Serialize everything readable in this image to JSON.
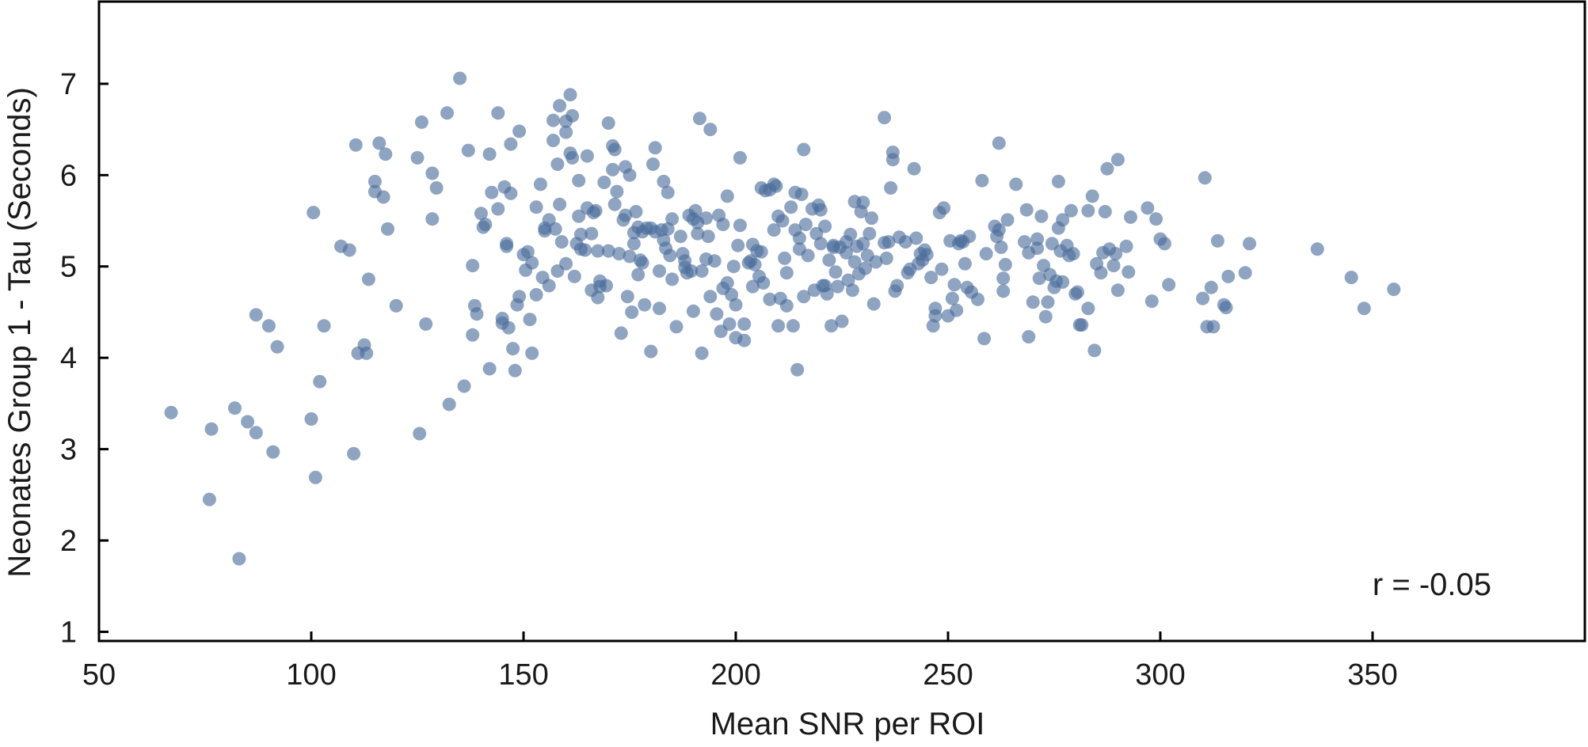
{
  "chart_data": {
    "type": "scatter",
    "xlabel": "Mean SNR per ROI",
    "ylabel": "Neonates  Group 1 - Tau (Seconds)",
    "xlim": [
      50,
      400
    ],
    "ylim": [
      0.9,
      7.9
    ],
    "xticks": [
      50,
      100,
      150,
      200,
      250,
      300,
      350
    ],
    "yticks": [
      1,
      2,
      3,
      4,
      5,
      6,
      7
    ],
    "grid": false,
    "annotation": "r = -0.05",
    "point_color": "#4a6c9b",
    "points": [
      [
        67,
        3.4
      ],
      [
        76,
        2.45
      ],
      [
        76.5,
        3.22
      ],
      [
        82,
        3.45
      ],
      [
        83,
        1.8
      ],
      [
        85,
        3.3
      ],
      [
        87,
        3.18
      ],
      [
        87,
        4.47
      ],
      [
        90,
        4.35
      ],
      [
        91,
        2.97
      ],
      [
        92,
        4.12
      ],
      [
        100,
        3.33
      ],
      [
        100.5,
        5.59
      ],
      [
        101,
        2.69
      ],
      [
        102,
        3.74
      ],
      [
        103,
        4.35
      ],
      [
        107,
        5.22
      ],
      [
        109,
        5.18
      ],
      [
        110,
        2.95
      ],
      [
        110.5,
        6.33
      ],
      [
        111,
        4.05
      ],
      [
        112.5,
        4.14
      ],
      [
        113,
        4.05
      ],
      [
        113.5,
        4.86
      ],
      [
        115,
        5.82
      ],
      [
        115,
        5.93
      ],
      [
        116,
        6.35
      ],
      [
        117,
        5.76
      ],
      [
        117.5,
        6.23
      ],
      [
        118,
        5.41
      ],
      [
        120,
        4.57
      ],
      [
        125,
        6.19
      ],
      [
        125.5,
        3.17
      ],
      [
        126,
        6.58
      ],
      [
        127,
        4.37
      ],
      [
        128.5,
        6.02
      ],
      [
        128.5,
        5.52
      ],
      [
        129.5,
        5.86
      ],
      [
        132,
        6.68
      ],
      [
        132.5,
        3.49
      ],
      [
        135,
        7.06
      ],
      [
        136,
        3.69
      ],
      [
        137,
        6.27
      ],
      [
        138,
        5.01
      ],
      [
        138,
        4.25
      ],
      [
        138.5,
        4.57
      ],
      [
        139,
        4.48
      ],
      [
        140,
        5.58
      ],
      [
        140.5,
        5.43
      ],
      [
        141,
        5.46
      ],
      [
        142,
        6.23
      ],
      [
        142,
        3.88
      ],
      [
        142.5,
        5.81
      ],
      [
        144,
        5.63
      ],
      [
        144,
        6.68
      ],
      [
        145,
        4.43
      ],
      [
        145,
        4.38
      ],
      [
        145.5,
        5.87
      ],
      [
        146,
        5.25
      ],
      [
        146,
        5.22
      ],
      [
        146.5,
        4.33
      ],
      [
        147,
        5.8
      ],
      [
        147,
        6.34
      ],
      [
        147.5,
        4.1
      ],
      [
        148,
        3.86
      ],
      [
        148.5,
        4.58
      ],
      [
        149,
        6.48
      ],
      [
        149,
        4.67
      ],
      [
        150,
        5.13
      ],
      [
        150.5,
        4.96
      ],
      [
        151,
        5.16
      ],
      [
        151.5,
        4.42
      ],
      [
        152,
        5.04
      ],
      [
        152,
        4.05
      ],
      [
        153,
        5.65
      ],
      [
        153,
        4.69
      ],
      [
        154,
        5.9
      ],
      [
        154.5,
        4.88
      ],
      [
        155,
        5.42
      ],
      [
        155,
        5.39
      ],
      [
        156,
        5.51
      ],
      [
        156,
        4.79
      ],
      [
        157,
        6.6
      ],
      [
        157,
        6.38
      ],
      [
        157.5,
        5.41
      ],
      [
        158,
        4.95
      ],
      [
        158,
        6.12
      ],
      [
        158.5,
        5.68
      ],
      [
        158.5,
        6.76
      ],
      [
        159,
        5.27
      ],
      [
        160,
        6.59
      ],
      [
        160,
        6.47
      ],
      [
        160,
        5.03
      ],
      [
        161,
        6.88
      ],
      [
        161,
        6.24
      ],
      [
        161.5,
        6.19
      ],
      [
        161.5,
        6.65
      ],
      [
        162,
        4.89
      ],
      [
        162.5,
        5.25
      ],
      [
        163,
        5.55
      ],
      [
        163,
        5.94
      ],
      [
        163.5,
        5.19
      ],
      [
        163.5,
        5.35
      ],
      [
        164.5,
        5.18
      ],
      [
        165,
        6.21
      ],
      [
        165,
        5.64
      ],
      [
        166,
        4.74
      ],
      [
        166,
        5.36
      ],
      [
        166.5,
        5.59
      ],
      [
        167,
        5.61
      ],
      [
        167.5,
        5.17
      ],
      [
        167.5,
        4.66
      ],
      [
        168,
        4.84
      ],
      [
        168,
        4.78
      ],
      [
        169,
        5.92
      ],
      [
        169.5,
        4.79
      ],
      [
        170,
        5.17
      ],
      [
        170,
        6.57
      ],
      [
        171,
        6.32
      ],
      [
        171,
        6.06
      ],
      [
        171.5,
        5.68
      ],
      [
        171.5,
        6.28
      ],
      [
        172,
        5.82
      ],
      [
        172.5,
        5.14
      ],
      [
        173,
        4.27
      ],
      [
        173.5,
        5.51
      ],
      [
        174,
        6.09
      ],
      [
        174,
        5.56
      ],
      [
        174.5,
        4.67
      ],
      [
        175,
        5.11
      ],
      [
        175,
        6.0
      ],
      [
        175.5,
        4.5
      ],
      [
        176,
        5.25
      ],
      [
        176,
        5.37
      ],
      [
        176.5,
        5.6
      ],
      [
        177,
        4.91
      ],
      [
        177,
        5.43
      ],
      [
        177.5,
        5.07
      ],
      [
        178,
        5.04
      ],
      [
        178,
        5.38
      ],
      [
        178.5,
        4.58
      ],
      [
        179,
        5.42
      ],
      [
        180,
        5.42
      ],
      [
        180,
        4.07
      ],
      [
        180.5,
        6.12
      ],
      [
        181,
        6.3
      ],
      [
        181,
        5.38
      ],
      [
        182,
        4.54
      ],
      [
        182,
        4.95
      ],
      [
        182.5,
        5.4
      ],
      [
        183,
        5.29
      ],
      [
        183,
        5.93
      ],
      [
        183.5,
        5.2
      ],
      [
        184,
        5.41
      ],
      [
        184,
        5.81
      ],
      [
        184.5,
        5.12
      ],
      [
        185,
        5.52
      ],
      [
        185,
        4.86
      ],
      [
        186,
        4.34
      ],
      [
        187,
        5.33
      ],
      [
        187.5,
        5.14
      ],
      [
        188,
        4.99
      ],
      [
        188,
        5.06
      ],
      [
        188.5,
        4.93
      ],
      [
        189,
        5.56
      ],
      [
        189.5,
        4.95
      ],
      [
        190,
        4.51
      ],
      [
        190,
        5.52
      ],
      [
        190.5,
        5.61
      ],
      [
        191,
        5.48
      ],
      [
        191,
        5.36
      ],
      [
        191.5,
        6.62
      ],
      [
        192,
        4.95
      ],
      [
        192,
        4.05
      ],
      [
        193,
        5.53
      ],
      [
        193,
        5.08
      ],
      [
        193.5,
        5.33
      ],
      [
        194,
        6.5
      ],
      [
        194,
        4.67
      ],
      [
        195,
        5.06
      ],
      [
        195.5,
        4.48
      ],
      [
        196,
        5.56
      ],
      [
        196.5,
        4.29
      ],
      [
        197,
        4.76
      ],
      [
        197,
        5.46
      ],
      [
        198,
        5.77
      ],
      [
        198,
        4.82
      ],
      [
        198.5,
        4.37
      ],
      [
        199,
        4.69
      ],
      [
        199.5,
        5.0
      ],
      [
        200,
        4.58
      ],
      [
        200,
        4.22
      ],
      [
        200.5,
        5.23
      ],
      [
        201,
        6.19
      ],
      [
        201,
        5.45
      ],
      [
        202,
        4.37
      ],
      [
        202,
        4.19
      ],
      [
        203,
        5.04
      ],
      [
        203.5,
        5.06
      ],
      [
        204,
        5.24
      ],
      [
        204,
        4.78
      ],
      [
        204.5,
        5.02
      ],
      [
        205,
        5.17
      ],
      [
        205.5,
        4.89
      ],
      [
        206,
        5.86
      ],
      [
        206,
        5.16
      ],
      [
        206.5,
        4.82
      ],
      [
        207,
        5.83
      ],
      [
        208,
        5.84
      ],
      [
        208,
        4.64
      ],
      [
        209,
        5.9
      ],
      [
        209,
        5.4
      ],
      [
        209.5,
        5.88
      ],
      [
        210,
        5.55
      ],
      [
        210,
        4.35
      ],
      [
        210.5,
        4.65
      ],
      [
        211,
        5.5
      ],
      [
        211.5,
        5.09
      ],
      [
        212,
        4.93
      ],
      [
        212,
        4.57
      ],
      [
        213,
        5.65
      ],
      [
        213.5,
        4.35
      ],
      [
        214,
        5.4
      ],
      [
        214,
        5.81
      ],
      [
        214.5,
        3.87
      ],
      [
        215,
        5.31
      ],
      [
        215,
        5.19
      ],
      [
        215.5,
        5.79
      ],
      [
        216,
        6.28
      ],
      [
        216,
        4.67
      ],
      [
        216.5,
        5.46
      ],
      [
        217,
        5.12
      ],
      [
        218,
        5.63
      ],
      [
        218.5,
        4.74
      ],
      [
        219,
        5.36
      ],
      [
        219.5,
        5.67
      ],
      [
        220,
        5.25
      ],
      [
        220,
        5.62
      ],
      [
        220.5,
        4.79
      ],
      [
        221,
        5.44
      ],
      [
        221,
        4.79
      ],
      [
        221.5,
        4.7
      ],
      [
        222,
        5.07
      ],
      [
        222.5,
        4.35
      ],
      [
        223,
        5.23
      ],
      [
        223,
        5.21
      ],
      [
        223.5,
        4.94
      ],
      [
        224,
        4.78
      ],
      [
        224.5,
        5.21
      ],
      [
        225,
        4.4
      ],
      [
        226,
        5.15
      ],
      [
        226,
        5.27
      ],
      [
        226.5,
        4.85
      ],
      [
        227,
        5.35
      ],
      [
        227.5,
        4.74
      ],
      [
        228,
        5.71
      ],
      [
        228,
        5.05
      ],
      [
        228.5,
        5.22
      ],
      [
        229,
        4.92
      ],
      [
        229.5,
        5.6
      ],
      [
        230,
        5.7
      ],
      [
        230,
        5.25
      ],
      [
        230.5,
        4.98
      ],
      [
        231,
        5.12
      ],
      [
        231.5,
        5.36
      ],
      [
        232,
        5.53
      ],
      [
        232.5,
        4.59
      ],
      [
        233,
        5.05
      ],
      [
        235,
        6.63
      ],
      [
        235,
        5.26
      ],
      [
        235.5,
        5.09
      ],
      [
        236,
        5.27
      ],
      [
        236.5,
        5.86
      ],
      [
        237,
        6.25
      ],
      [
        237,
        6.17
      ],
      [
        237.5,
        4.73
      ],
      [
        238,
        4.79
      ],
      [
        238.5,
        5.32
      ],
      [
        240,
        5.27
      ],
      [
        240.5,
        4.93
      ],
      [
        241,
        4.97
      ],
      [
        242,
        6.07
      ],
      [
        242.5,
        5.31
      ],
      [
        243,
        5.03
      ],
      [
        243.5,
        5.14
      ],
      [
        244,
        5.07
      ],
      [
        244.5,
        5.18
      ],
      [
        245,
        5.13
      ],
      [
        246,
        4.88
      ],
      [
        246.5,
        4.35
      ],
      [
        247,
        4.54
      ],
      [
        247,
        4.46
      ],
      [
        248,
        5.59
      ],
      [
        248.5,
        4.97
      ],
      [
        249,
        5.64
      ],
      [
        250,
        4.46
      ],
      [
        250.5,
        5.28
      ],
      [
        251,
        4.65
      ],
      [
        251.5,
        4.8
      ],
      [
        252,
        4.52
      ],
      [
        252.5,
        5.25
      ],
      [
        253,
        5.28
      ],
      [
        253.5,
        5.27
      ],
      [
        254,
        5.03
      ],
      [
        254.5,
        4.77
      ],
      [
        255,
        5.33
      ],
      [
        255.5,
        4.72
      ],
      [
        257,
        4.64
      ],
      [
        258,
        5.94
      ],
      [
        258.5,
        4.21
      ],
      [
        259,
        5.14
      ],
      [
        261,
        5.44
      ],
      [
        261.5,
        5.33
      ],
      [
        262,
        6.35
      ],
      [
        262,
        5.4
      ],
      [
        262.5,
        5.21
      ],
      [
        263,
        4.87
      ],
      [
        263.5,
        5.02
      ],
      [
        263,
        4.73
      ],
      [
        264,
        5.51
      ],
      [
        266,
        5.9
      ],
      [
        268,
        5.27
      ],
      [
        268.5,
        5.62
      ],
      [
        269,
        5.15
      ],
      [
        269,
        4.23
      ],
      [
        270,
        4.61
      ],
      [
        271,
        5.3
      ],
      [
        271,
        5.2
      ],
      [
        271.5,
        4.87
      ],
      [
        272,
        5.55
      ],
      [
        272.5,
        5.01
      ],
      [
        273,
        4.45
      ],
      [
        273.5,
        4.61
      ],
      [
        274,
        4.91
      ],
      [
        274.5,
        5.25
      ],
      [
        275,
        4.77
      ],
      [
        275.5,
        4.84
      ],
      [
        276,
        5.93
      ],
      [
        276,
        5.42
      ],
      [
        276.5,
        5.17
      ],
      [
        277,
        5.51
      ],
      [
        277,
        4.83
      ],
      [
        278,
        5.23
      ],
      [
        278.5,
        5.12
      ],
      [
        279,
        5.61
      ],
      [
        279.5,
        5.14
      ],
      [
        280,
        4.7
      ],
      [
        280.5,
        4.72
      ],
      [
        281,
        4.36
      ],
      [
        281.5,
        4.36
      ],
      [
        283,
        5.61
      ],
      [
        283,
        4.54
      ],
      [
        284,
        5.77
      ],
      [
        284.5,
        4.08
      ],
      [
        285,
        5.03
      ],
      [
        286,
        4.93
      ],
      [
        286.5,
        5.15
      ],
      [
        287,
        5.6
      ],
      [
        287.5,
        6.07
      ],
      [
        288,
        5.19
      ],
      [
        289,
        5.01
      ],
      [
        289.5,
        5.14
      ],
      [
        290,
        6.17
      ],
      [
        290,
        4.74
      ],
      [
        292,
        5.22
      ],
      [
        292.5,
        4.94
      ],
      [
        293,
        5.54
      ],
      [
        297,
        5.64
      ],
      [
        298,
        4.62
      ],
      [
        299,
        5.52
      ],
      [
        300,
        5.3
      ],
      [
        301,
        5.25
      ],
      [
        302,
        4.8
      ],
      [
        310,
        4.65
      ],
      [
        310.5,
        5.97
      ],
      [
        311,
        4.34
      ],
      [
        312,
        4.77
      ],
      [
        312.5,
        4.34
      ],
      [
        313.5,
        5.28
      ],
      [
        315,
        4.58
      ],
      [
        315.5,
        4.55
      ],
      [
        316,
        4.89
      ],
      [
        320,
        4.93
      ],
      [
        321,
        5.25
      ],
      [
        337,
        5.19
      ],
      [
        345,
        4.88
      ],
      [
        348,
        4.54
      ],
      [
        355,
        4.75
      ]
    ]
  }
}
